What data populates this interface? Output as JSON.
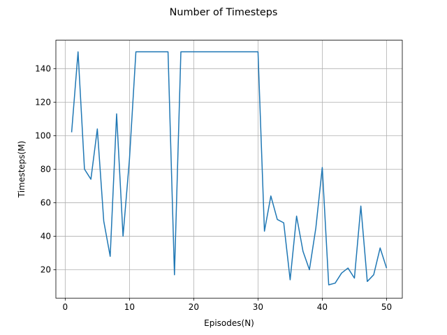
{
  "chart_data": {
    "type": "line",
    "title": "Number of Timesteps",
    "xlabel": "Episodes(N)",
    "ylabel": "Timesteps(M)",
    "xlim": [
      -1.45,
      52.45
    ],
    "ylim": [
      3.05,
      156.95
    ],
    "xticks": [
      0,
      10,
      20,
      30,
      40,
      50
    ],
    "yticks": [
      20,
      40,
      60,
      80,
      100,
      120,
      140
    ],
    "grid": true,
    "line_color": "#1f77b4",
    "series": [
      {
        "x": [
          1,
          2,
          3,
          4,
          5,
          6,
          7,
          8,
          9,
          10,
          11,
          12,
          13,
          14,
          15,
          16,
          17,
          18,
          19,
          20,
          21,
          22,
          23,
          24,
          25,
          26,
          27,
          28,
          29,
          30,
          31,
          32,
          33,
          34,
          35,
          36,
          37,
          38,
          39,
          40,
          41,
          42,
          43,
          44,
          45,
          46,
          47,
          48,
          49,
          50
        ],
        "values": [
          102,
          150,
          80,
          74,
          104,
          49,
          28,
          113,
          40,
          86,
          150,
          150,
          150,
          150,
          150,
          150,
          17,
          150,
          150,
          150,
          150,
          150,
          150,
          150,
          150,
          150,
          150,
          150,
          150,
          150,
          43,
          64,
          50,
          48,
          14,
          52,
          31,
          20,
          45,
          81,
          11,
          12,
          18,
          21,
          15,
          58,
          13,
          17,
          33,
          21
        ]
      }
    ]
  }
}
